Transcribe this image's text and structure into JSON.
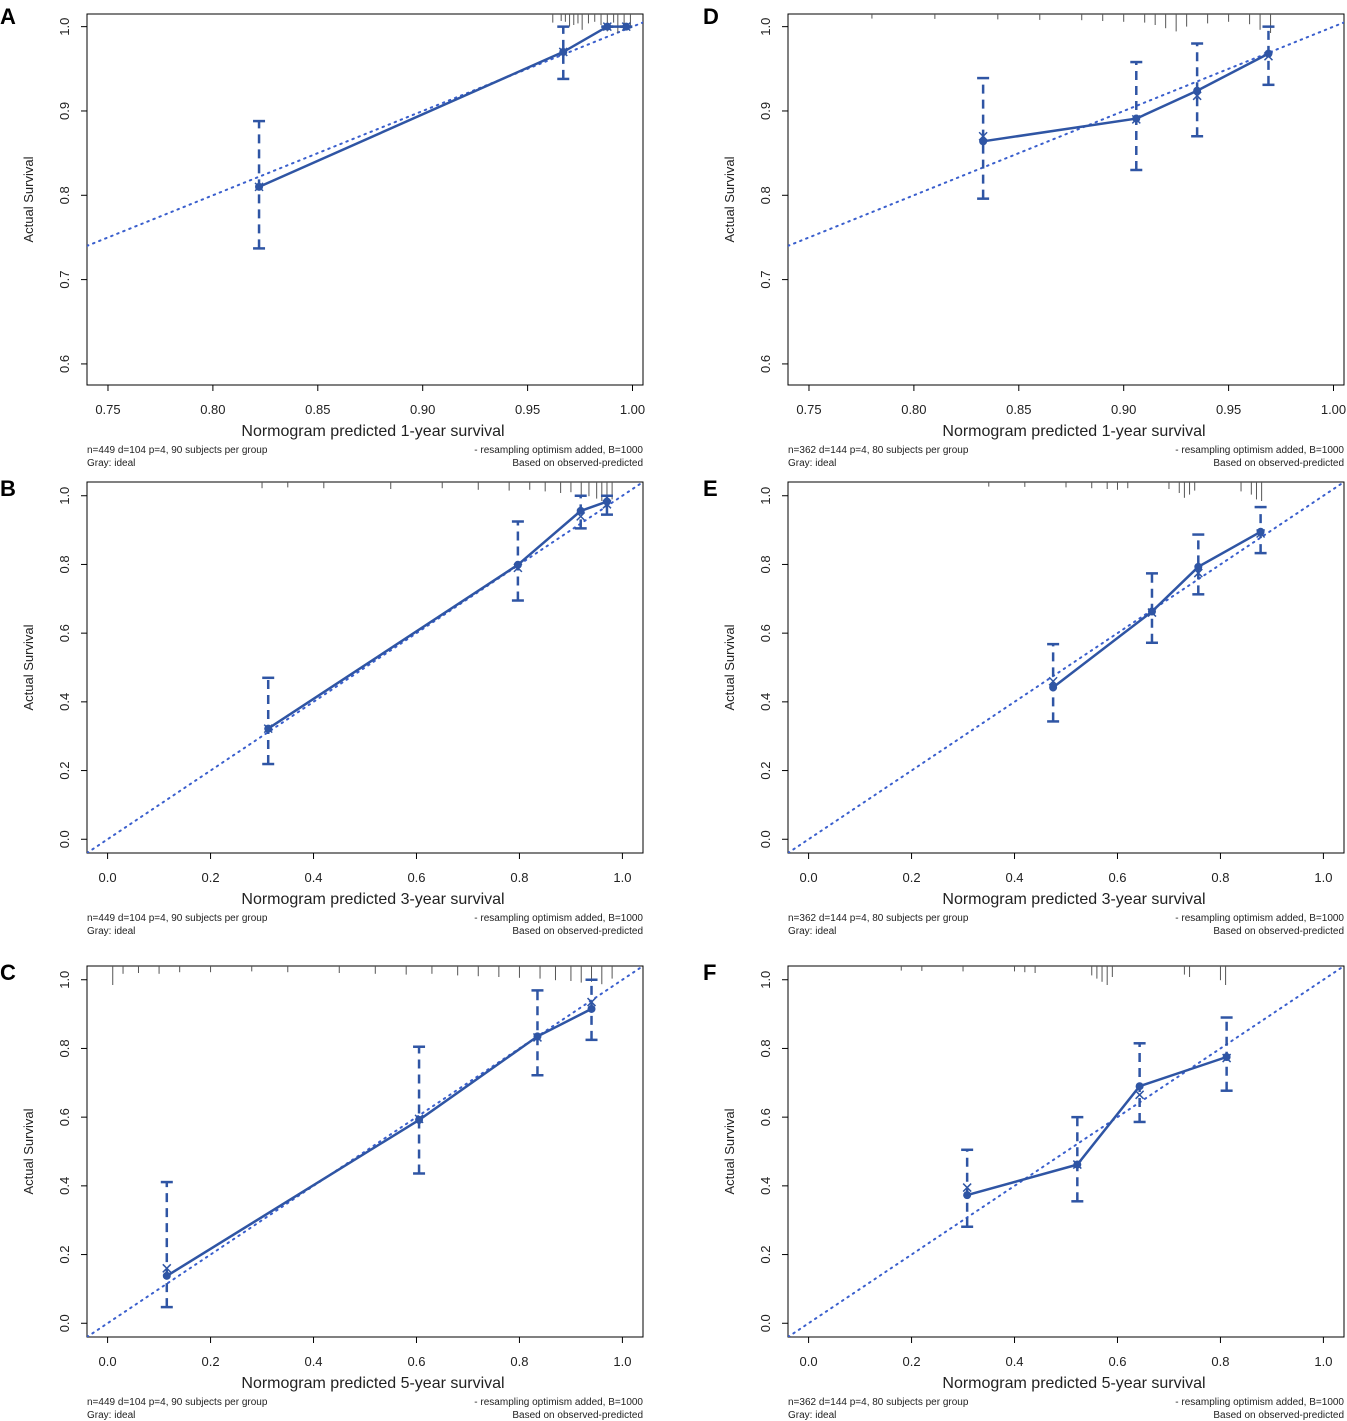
{
  "figure": {
    "series_color": "#2F55A4",
    "ideal_color": "#3A5FCD",
    "rug_color": "#555555",
    "axis_color": "#000000"
  },
  "chart_data": [
    {
      "panel": "A",
      "type": "line",
      "xlabel": "Normogram predicted 1-year survival",
      "ylabel": "Actual Survival",
      "xlim": [
        0.74,
        1.005
      ],
      "ylim": [
        0.575,
        1.015
      ],
      "xticks": [
        0.75,
        0.8,
        0.85,
        0.9,
        0.95,
        1.0
      ],
      "xtick_labels": [
        "0.75",
        "0.80",
        "0.85",
        "0.90",
        "0.95",
        "1.00"
      ],
      "yticks": [
        0.6,
        0.7,
        0.8,
        0.9,
        1.0
      ],
      "ytick_labels": [
        "0.6",
        "0.7",
        "0.8",
        "0.9",
        "1.0"
      ],
      "ideal_line": [
        [
          0.74,
          0.74
        ],
        [
          1.005,
          1.005
        ]
      ],
      "series": [
        {
          "name": "observed",
          "x": [
            0.822,
            0.967,
            0.988,
            0.997
          ],
          "y": [
            0.81,
            0.97,
            1.0,
            1.0
          ],
          "ci_low": [
            0.737,
            0.938,
            1.0,
            1.0
          ],
          "ci_high": [
            0.888,
            1.0,
            1.0,
            1.0
          ],
          "corrected": [
            0.81,
            0.97,
            1.0,
            1.0
          ]
        }
      ],
      "rug": [
        {
          "x": 0.962,
          "h": 0.35
        },
        {
          "x": 0.966,
          "h": 0.25
        },
        {
          "x": 0.968,
          "h": 0.3
        },
        {
          "x": 0.97,
          "h": 0.6
        },
        {
          "x": 0.972,
          "h": 0.5
        },
        {
          "x": 0.974,
          "h": 0.4
        },
        {
          "x": 0.976,
          "h": 0.8
        },
        {
          "x": 0.979,
          "h": 0.4
        },
        {
          "x": 0.982,
          "h": 0.3
        },
        {
          "x": 0.985,
          "h": 0.5
        },
        {
          "x": 0.988,
          "h": 0.9
        },
        {
          "x": 0.991,
          "h": 0.35
        },
        {
          "x": 0.993,
          "h": 1.0
        },
        {
          "x": 0.996,
          "h": 0.45
        },
        {
          "x": 0.999,
          "h": 0.7
        }
      ],
      "footer_left": [
        "n=449 d=104 p=4, 90 subjects per group",
        "Gray: ideal"
      ],
      "footer_right": [
        "- resampling optimism added, B=1000",
        "Based on observed-predicted"
      ]
    },
    {
      "panel": "B",
      "type": "line",
      "xlabel": "Normogram predicted 3-year survival",
      "ylabel": "Actual Survival",
      "xlim": [
        -0.04,
        1.04
      ],
      "ylim": [
        -0.04,
        1.04
      ],
      "xticks": [
        0.0,
        0.2,
        0.4,
        0.6,
        0.8,
        1.0
      ],
      "xtick_labels": [
        "0.0",
        "0.2",
        "0.4",
        "0.6",
        "0.8",
        "1.0"
      ],
      "yticks": [
        0.0,
        0.2,
        0.4,
        0.6,
        0.8,
        1.0
      ],
      "ytick_labels": [
        "0.0",
        "0.2",
        "0.4",
        "0.6",
        "0.8",
        "1.0"
      ],
      "ideal_line": [
        [
          -0.04,
          -0.04
        ],
        [
          1.04,
          1.04
        ]
      ],
      "series": [
        {
          "name": "observed",
          "x": [
            0.312,
            0.797,
            0.919,
            0.97
          ],
          "y": [
            0.322,
            0.799,
            0.956,
            0.983
          ],
          "ci_low": [
            0.219,
            0.695,
            0.905,
            0.945
          ],
          "ci_high": [
            0.47,
            0.925,
            1.0,
            1.0
          ],
          "corrected": [
            0.322,
            0.79,
            0.94,
            0.975
          ]
        }
      ],
      "rug": [
        {
          "x": 0.3,
          "h": 0.2
        },
        {
          "x": 0.35,
          "h": 0.15
        },
        {
          "x": 0.42,
          "h": 0.2
        },
        {
          "x": 0.55,
          "h": 0.25
        },
        {
          "x": 0.65,
          "h": 0.2
        },
        {
          "x": 0.72,
          "h": 0.3
        },
        {
          "x": 0.78,
          "h": 0.35
        },
        {
          "x": 0.82,
          "h": 0.3
        },
        {
          "x": 0.85,
          "h": 0.4
        },
        {
          "x": 0.88,
          "h": 0.5
        },
        {
          "x": 0.9,
          "h": 0.45
        },
        {
          "x": 0.92,
          "h": 0.6
        },
        {
          "x": 0.935,
          "h": 0.7
        },
        {
          "x": 0.95,
          "h": 0.85
        },
        {
          "x": 0.96,
          "h": 1.0
        },
        {
          "x": 0.97,
          "h": 0.8
        },
        {
          "x": 0.98,
          "h": 0.9
        }
      ],
      "footer_left": [
        "n=449 d=104 p=4, 90 subjects per group",
        "Gray: ideal"
      ],
      "footer_right": [
        "- resampling optimism added, B=1000",
        "Based on observed-predicted"
      ]
    },
    {
      "panel": "C",
      "type": "line",
      "xlabel": "Normogram predicted 5-year survival",
      "ylabel": "Actual Survival",
      "xlim": [
        -0.04,
        1.04
      ],
      "ylim": [
        -0.04,
        1.04
      ],
      "xticks": [
        0.0,
        0.2,
        0.4,
        0.6,
        0.8,
        1.0
      ],
      "xtick_labels": [
        "0.0",
        "0.2",
        "0.4",
        "0.6",
        "0.8",
        "1.0"
      ],
      "yticks": [
        0.0,
        0.2,
        0.4,
        0.6,
        0.8,
        1.0
      ],
      "ytick_labels": [
        "0.0",
        "0.2",
        "0.4",
        "0.6",
        "0.8",
        "1.0"
      ],
      "ideal_line": [
        [
          -0.04,
          -0.04
        ],
        [
          1.04,
          1.04
        ]
      ],
      "series": [
        {
          "name": "observed",
          "x": [
            0.115,
            0.605,
            0.835,
            0.94
          ],
          "y": [
            0.138,
            0.592,
            0.835,
            0.915
          ],
          "ci_low": [
            0.047,
            0.436,
            0.722,
            0.825
          ],
          "ci_high": [
            0.411,
            0.805,
            0.969,
            1.0
          ],
          "corrected": [
            0.16,
            0.595,
            0.832,
            0.935
          ]
        }
      ],
      "rug": [
        {
          "x": 0.01,
          "h": 1.0
        },
        {
          "x": 0.03,
          "h": 0.3
        },
        {
          "x": 0.06,
          "h": 0.25
        },
        {
          "x": 0.1,
          "h": 0.3
        },
        {
          "x": 0.14,
          "h": 0.2
        },
        {
          "x": 0.2,
          "h": 0.2
        },
        {
          "x": 0.28,
          "h": 0.15
        },
        {
          "x": 0.35,
          "h": 0.2
        },
        {
          "x": 0.45,
          "h": 0.25
        },
        {
          "x": 0.52,
          "h": 0.3
        },
        {
          "x": 0.58,
          "h": 0.35
        },
        {
          "x": 0.63,
          "h": 0.3
        },
        {
          "x": 0.68,
          "h": 0.4
        },
        {
          "x": 0.72,
          "h": 0.45
        },
        {
          "x": 0.76,
          "h": 0.5
        },
        {
          "x": 0.8,
          "h": 0.55
        },
        {
          "x": 0.84,
          "h": 0.6
        },
        {
          "x": 0.87,
          "h": 0.7
        },
        {
          "x": 0.9,
          "h": 0.75
        },
        {
          "x": 0.92,
          "h": 0.85
        },
        {
          "x": 0.94,
          "h": 0.8
        },
        {
          "x": 0.96,
          "h": 0.95
        },
        {
          "x": 0.98,
          "h": 0.6
        }
      ],
      "footer_left": [
        "n=449 d=104 p=4, 90 subjects per group",
        "Gray: ideal"
      ],
      "footer_right": [
        "- resampling optimism added, B=1000",
        "Based on observed-predicted"
      ]
    },
    {
      "panel": "D",
      "type": "line",
      "xlabel": "Normogram predicted 1-year survival",
      "ylabel": "Actual Survival",
      "xlim": [
        0.74,
        1.005
      ],
      "ylim": [
        0.575,
        1.015
      ],
      "xticks": [
        0.75,
        0.8,
        0.85,
        0.9,
        0.95,
        1.0
      ],
      "xtick_labels": [
        "0.75",
        "0.80",
        "0.85",
        "0.90",
        "0.95",
        "1.00"
      ],
      "yticks": [
        0.6,
        0.7,
        0.8,
        0.9,
        1.0
      ],
      "ytick_labels": [
        "0.6",
        "0.7",
        "0.8",
        "0.9",
        "1.0"
      ],
      "ideal_line": [
        [
          0.74,
          0.74
        ],
        [
          1.005,
          1.005
        ]
      ],
      "series": [
        {
          "name": "observed",
          "x": [
            0.833,
            0.906,
            0.935,
            0.969
          ],
          "y": [
            0.864,
            0.891,
            0.924,
            0.968
          ],
          "ci_low": [
            0.796,
            0.83,
            0.87,
            0.931
          ],
          "ci_high": [
            0.939,
            0.958,
            0.98,
            1.0
          ],
          "corrected": [
            0.87,
            0.89,
            0.918,
            0.965
          ]
        }
      ],
      "rug": [
        {
          "x": 0.78,
          "h": 0.1
        },
        {
          "x": 0.81,
          "h": 0.12
        },
        {
          "x": 0.84,
          "h": 0.15
        },
        {
          "x": 0.86,
          "h": 0.18
        },
        {
          "x": 0.88,
          "h": 0.2
        },
        {
          "x": 0.89,
          "h": 0.25
        },
        {
          "x": 0.9,
          "h": 0.3
        },
        {
          "x": 0.91,
          "h": 0.35
        },
        {
          "x": 0.915,
          "h": 0.5
        },
        {
          "x": 0.92,
          "h": 0.7
        },
        {
          "x": 0.925,
          "h": 0.9
        },
        {
          "x": 0.93,
          "h": 0.6
        },
        {
          "x": 0.94,
          "h": 0.4
        },
        {
          "x": 0.95,
          "h": 0.3
        },
        {
          "x": 0.96,
          "h": 0.45
        },
        {
          "x": 0.965,
          "h": 0.8
        },
        {
          "x": 0.97,
          "h": 1.0
        }
      ],
      "footer_left": [
        "n=362 d=144 p=4, 80 subjects per group",
        "Gray: ideal"
      ],
      "footer_right": [
        "- resampling optimism added, B=1000",
        "Based on observed-predicted"
      ]
    },
    {
      "panel": "E",
      "type": "line",
      "xlabel": "Normogram predicted 3-year survival",
      "ylabel": "Actual Survival",
      "xlim": [
        -0.04,
        1.04
      ],
      "ylim": [
        -0.04,
        1.04
      ],
      "xticks": [
        0.0,
        0.2,
        0.4,
        0.6,
        0.8,
        1.0
      ],
      "xtick_labels": [
        "0.0",
        "0.2",
        "0.4",
        "0.6",
        "0.8",
        "1.0"
      ],
      "yticks": [
        0.0,
        0.2,
        0.4,
        0.6,
        0.8,
        1.0
      ],
      "ytick_labels": [
        "0.0",
        "0.2",
        "0.4",
        "0.6",
        "0.8",
        "1.0"
      ],
      "ideal_line": [
        [
          -0.04,
          -0.04
        ],
        [
          1.04,
          1.04
        ]
      ],
      "series": [
        {
          "name": "observed",
          "x": [
            0.475,
            0.667,
            0.757,
            0.878
          ],
          "y": [
            0.442,
            0.663,
            0.793,
            0.895
          ],
          "ci_low": [
            0.343,
            0.572,
            0.713,
            0.833
          ],
          "ci_high": [
            0.568,
            0.774,
            0.887,
            0.967
          ],
          "corrected": [
            0.46,
            0.66,
            0.775,
            0.89
          ]
        }
      ],
      "rug": [
        {
          "x": 0.35,
          "h": 0.1
        },
        {
          "x": 0.42,
          "h": 0.12
        },
        {
          "x": 0.5,
          "h": 0.15
        },
        {
          "x": 0.55,
          "h": 0.2
        },
        {
          "x": 0.58,
          "h": 0.25
        },
        {
          "x": 0.6,
          "h": 0.3
        },
        {
          "x": 0.62,
          "h": 0.2
        },
        {
          "x": 0.7,
          "h": 0.25
        },
        {
          "x": 0.72,
          "h": 0.5
        },
        {
          "x": 0.73,
          "h": 0.8
        },
        {
          "x": 0.74,
          "h": 0.6
        },
        {
          "x": 0.75,
          "h": 0.35
        },
        {
          "x": 0.84,
          "h": 0.4
        },
        {
          "x": 0.86,
          "h": 0.6
        },
        {
          "x": 0.87,
          "h": 0.9
        },
        {
          "x": 0.88,
          "h": 1.0
        }
      ],
      "footer_left": [
        "n=362 d=144 p=4, 80 subjects per group",
        "Gray: ideal"
      ],
      "footer_right": [
        "- resampling optimism added, B=1000",
        "Based on observed-predicted"
      ]
    },
    {
      "panel": "F",
      "type": "line",
      "xlabel": "Normogram predicted 5-year survival",
      "ylabel": "Actual Survival",
      "xlim": [
        -0.04,
        1.04
      ],
      "ylim": [
        -0.04,
        1.04
      ],
      "xticks": [
        0.0,
        0.2,
        0.4,
        0.6,
        0.8,
        1.0
      ],
      "xtick_labels": [
        "0.0",
        "0.2",
        "0.4",
        "0.6",
        "0.8",
        "1.0"
      ],
      "yticks": [
        0.0,
        0.2,
        0.4,
        0.6,
        0.8,
        1.0
      ],
      "ytick_labels": [
        "0.0",
        "0.2",
        "0.4",
        "0.6",
        "0.8",
        "1.0"
      ],
      "ideal_line": [
        [
          -0.04,
          -0.04
        ],
        [
          1.04,
          1.04
        ]
      ],
      "series": [
        {
          "name": "observed",
          "x": [
            0.308,
            0.522,
            0.643,
            0.812
          ],
          "y": [
            0.373,
            0.462,
            0.69,
            0.775
          ],
          "ci_low": [
            0.281,
            0.355,
            0.586,
            0.677
          ],
          "ci_high": [
            0.505,
            0.6,
            0.815,
            0.89
          ],
          "corrected": [
            0.395,
            0.462,
            0.665,
            0.772
          ]
        }
      ],
      "rug": [
        {
          "x": 0.18,
          "h": 0.1
        },
        {
          "x": 0.22,
          "h": 0.12
        },
        {
          "x": 0.3,
          "h": 0.15
        },
        {
          "x": 0.4,
          "h": 0.15
        },
        {
          "x": 0.42,
          "h": 0.2
        },
        {
          "x": 0.44,
          "h": 0.25
        },
        {
          "x": 0.55,
          "h": 0.4
        },
        {
          "x": 0.56,
          "h": 0.6
        },
        {
          "x": 0.57,
          "h": 0.8
        },
        {
          "x": 0.58,
          "h": 1.0
        },
        {
          "x": 0.59,
          "h": 0.5
        },
        {
          "x": 0.73,
          "h": 0.35
        },
        {
          "x": 0.74,
          "h": 0.5
        },
        {
          "x": 0.8,
          "h": 0.7
        },
        {
          "x": 0.81,
          "h": 1.0
        }
      ],
      "footer_left": [
        "n=362 d=144 p=4, 80 subjects per group",
        "Gray: ideal"
      ],
      "footer_right": [
        "- resampling optimism added, B=1000",
        "Based on observed-predicted"
      ]
    }
  ]
}
